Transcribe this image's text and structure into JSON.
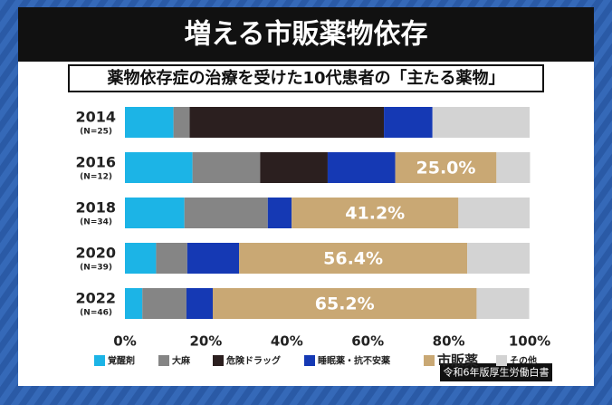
{
  "chart_data": {
    "type": "stacked-bar-horizontal",
    "title": "増える市販薬物依存",
    "subtitle": "薬物依存症の治療を受けた10代患者の「主たる薬物」",
    "source": "令和6年版厚生労働白書",
    "categories": [
      "2014",
      "2016",
      "2018",
      "2020",
      "2022"
    ],
    "sample_sizes": [
      "(N=25)",
      "(N=12)",
      "(N=34)",
      "(N=39)",
      "(N=46)"
    ],
    "series": [
      {
        "name": "覚醒剤",
        "color": "#1cb4e6",
        "values": [
          12,
          16.7,
          14.7,
          7.7,
          4.3
        ]
      },
      {
        "name": "大麻",
        "color": "#858585",
        "values": [
          4,
          16.7,
          20.6,
          7.7,
          10.9
        ]
      },
      {
        "name": "危険ドラッグ",
        "color": "#2b1f1f",
        "values": [
          48,
          16.7,
          0,
          0,
          0
        ]
      },
      {
        "name": "睡眠薬・抗不安薬",
        "color": "#1539b4",
        "values": [
          12,
          16.7,
          5.9,
          12.8,
          6.5
        ]
      },
      {
        "name": "市販薬",
        "color": "#c9a874",
        "values": [
          0,
          25.0,
          41.2,
          56.4,
          65.2
        ],
        "value_labels": [
          null,
          "25.0%",
          "41.2%",
          "56.4%",
          "65.2%"
        ]
      },
      {
        "name": "その他",
        "color": "#d3d3d3",
        "values": [
          24,
          8.3,
          17.6,
          15.4,
          13.0
        ]
      }
    ],
    "xlim": [
      0,
      100
    ],
    "xticks": [
      {
        "value": 0,
        "label": "0%"
      },
      {
        "value": 20,
        "label": "20%"
      },
      {
        "value": 40,
        "label": "40%"
      },
      {
        "value": 60,
        "label": "60%"
      },
      {
        "value": 80,
        "label": "80%"
      },
      {
        "value": 100,
        "label": "100%"
      }
    ]
  }
}
